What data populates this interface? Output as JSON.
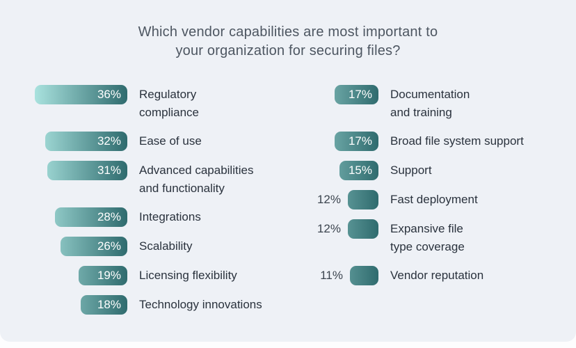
{
  "title": [
    "Which vendor capabilities are most important to",
    "your organization for securing files?"
  ],
  "theme": {
    "page_background": "#fdfdfe",
    "card_background": "#eef1f6",
    "bar_gradient_light": "#a9e2de",
    "bar_gradient_dark": "#2f6b6e",
    "title_color": "#4d5661",
    "label_color": "#2a323d",
    "percent_inside_color": "#ffffff",
    "percent_outside_color": "#3b444e"
  },
  "columns": {
    "left": {
      "rows": [
        {
          "pct": "36%",
          "value": 36,
          "label": [
            "Regulatory",
            "compliance"
          ]
        },
        {
          "pct": "32%",
          "value": 32,
          "label": [
            "Ease of use"
          ]
        },
        {
          "pct": "31%",
          "value": 31,
          "label": [
            "Advanced capabilities",
            "and functionality"
          ]
        },
        {
          "pct": "28%",
          "value": 28,
          "label": [
            "Integrations"
          ]
        },
        {
          "pct": "26%",
          "value": 26,
          "label": [
            "Scalability"
          ]
        },
        {
          "pct": "19%",
          "value": 19,
          "label": [
            "Licensing flexibility"
          ]
        },
        {
          "pct": "18%",
          "value": 18,
          "label": [
            "Technology innovations"
          ]
        }
      ]
    },
    "right": {
      "rows": [
        {
          "pct": "17%",
          "value": 17,
          "label": [
            "Documentation",
            "and training"
          ]
        },
        {
          "pct": "17%",
          "value": 17,
          "label": [
            "Broad file system support"
          ]
        },
        {
          "pct": "15%",
          "value": 15,
          "label": [
            "Support"
          ]
        },
        {
          "pct": "12%",
          "value": 12,
          "label": [
            "Fast deployment"
          ],
          "pct_outside": true
        },
        {
          "pct": "12%",
          "value": 12,
          "label": [
            "Expansive file",
            "type coverage"
          ],
          "pct_outside": true
        },
        {
          "pct": "11%",
          "value": 11,
          "label": [
            "Vendor reputation"
          ],
          "pct_outside": true
        }
      ]
    }
  },
  "chart_data": {
    "type": "bar",
    "orientation": "horizontal",
    "title": "Which vendor capabilities are most important to your organization for securing files?",
    "unit": "%",
    "categories": [
      "Regulatory compliance",
      "Ease of use",
      "Advanced capabilities and functionality",
      "Integrations",
      "Scalability",
      "Licensing flexibility",
      "Technology innovations",
      "Documentation and training",
      "Broad file system support",
      "Support",
      "Fast deployment",
      "Expansive file type coverage",
      "Vendor reputation"
    ],
    "values": [
      36,
      32,
      31,
      28,
      26,
      19,
      18,
      17,
      17,
      15,
      12,
      12,
      11
    ],
    "value_labels": [
      "36%",
      "32%",
      "31%",
      "28%",
      "26%",
      "19%",
      "18%",
      "17%",
      "17%",
      "15%",
      "12%",
      "12%",
      "11%"
    ],
    "xlabel": "",
    "ylabel": "",
    "xlim": [
      0,
      36
    ],
    "grid": false,
    "legend": false,
    "layout_hint": "two columns of right-aligned gradient bars; percent shown inside bar except for values <= 12 which show percent left of bar"
  }
}
